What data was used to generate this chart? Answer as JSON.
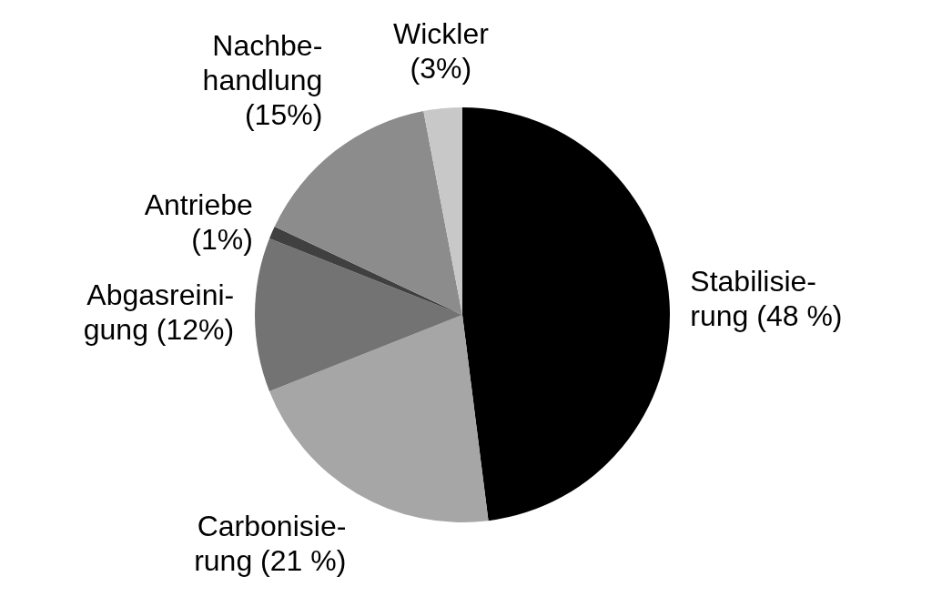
{
  "chart_data": {
    "type": "pie",
    "categories": [
      "Stabilisie-\nrung",
      "Carbonisie-\nrung",
      "Abgasreini-\ngung",
      "Antriebe\n",
      "Nachbe-\nhandlung\n",
      "Wickler\n"
    ],
    "values": [
      48,
      21,
      12,
      1,
      15,
      3
    ],
    "value_labels": [
      "(48 %)",
      "(21 %)",
      "(12%)",
      "(1%)",
      "(15%)",
      "(3%)"
    ],
    "colors": [
      "#000000",
      "#a6a6a6",
      "#737373",
      "#404040",
      "#8c8c8c",
      "#c8c8c8"
    ]
  }
}
